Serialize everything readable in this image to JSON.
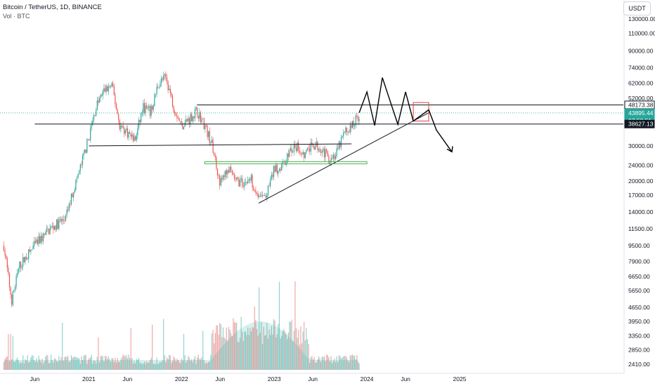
{
  "header": {
    "symbol_line": "Bitcoin / TetherUS, 1D, BINANCE",
    "volume_line": "Vol · BTC"
  },
  "currency_button": "USDT",
  "chart_data": {
    "type": "candlestick",
    "title": "",
    "y_scale": "log",
    "price_range": [
      2000,
      145000
    ],
    "price_ticks": [
      130000,
      110000,
      90000,
      74000,
      62000,
      52000,
      30000,
      24000,
      20000,
      17000,
      14000,
      11500,
      9500,
      7900,
      6650,
      5650,
      4650,
      3950,
      3350,
      2850,
      2410
    ],
    "x_tick_labels": [
      "Jun",
      "2021",
      "Jun",
      "2022",
      "Jun",
      "2023",
      "Jun",
      "2024",
      "Jun",
      "2025"
    ],
    "price_labels": [
      {
        "value": "48173.38",
        "price": 48173,
        "bg": "#ffffff",
        "fg": "#131722",
        "border": "#131722"
      },
      {
        "value": "43895.44",
        "price": 43895,
        "bg": "#26a69a",
        "fg": "#ffffff",
        "border": "#26a69a"
      },
      {
        "value": "07:58:51",
        "price": 41500,
        "bg": "#26a69a",
        "fg": "#ffffff",
        "border": "#26a69a"
      },
      {
        "value": "38627.13",
        "price": 38627,
        "bg": "#131722",
        "fg": "#ffffff",
        "border": "#131722"
      }
    ],
    "price_path": [
      [
        "2020-02",
        9500
      ],
      [
        "2020-03",
        5000
      ],
      [
        "2020-04",
        7500
      ],
      [
        "2020-06",
        9500
      ],
      [
        "2020-08",
        11500
      ],
      [
        "2020-10",
        13000
      ],
      [
        "2020-11",
        18000
      ],
      [
        "2020-12",
        24000
      ],
      [
        "2021-01",
        33000
      ],
      [
        "2021-02",
        48000
      ],
      [
        "2021-03",
        57000
      ],
      [
        "2021-04",
        60000
      ],
      [
        "2021-05",
        38000
      ],
      [
        "2021-06",
        35000
      ],
      [
        "2021-07",
        32000
      ],
      [
        "2021-08",
        47000
      ],
      [
        "2021-09",
        44000
      ],
      [
        "2021-10",
        62000
      ],
      [
        "2021-11",
        66000
      ],
      [
        "2021-12",
        47000
      ],
      [
        "2022-01",
        38000
      ],
      [
        "2022-02",
        41000
      ],
      [
        "2022-03",
        45000
      ],
      [
        "2022-04",
        38000
      ],
      [
        "2022-05",
        30000
      ],
      [
        "2022-06",
        19500
      ],
      [
        "2022-07",
        23000
      ],
      [
        "2022-08",
        20000
      ],
      [
        "2022-09",
        19500
      ],
      [
        "2022-10",
        20500
      ],
      [
        "2022-11",
        16500
      ],
      [
        "2022-12",
        16800
      ],
      [
        "2023-01",
        23000
      ],
      [
        "2023-02",
        23500
      ],
      [
        "2023-03",
        28000
      ],
      [
        "2023-04",
        29500
      ],
      [
        "2023-05",
        27000
      ],
      [
        "2023-06",
        30500
      ],
      [
        "2023-07",
        29500
      ],
      [
        "2023-08",
        26000
      ],
      [
        "2023-09",
        27000
      ],
      [
        "2023-10",
        34500
      ],
      [
        "2023-11",
        37500
      ],
      [
        "2023-12",
        43000
      ]
    ],
    "lines": [
      {
        "name": "resistance-line",
        "from": [
          "2022-03",
          48173
        ],
        "to": [
          "2025-05",
          48173
        ],
        "color": "#131722"
      },
      {
        "name": "support-line",
        "from": [
          "2020-06",
          38627
        ],
        "to": [
          "2025-05",
          38627
        ],
        "color": "#131722"
      },
      {
        "name": "range-low-line",
        "from": [
          "2021-01",
          30000
        ],
        "to": [
          "2023-11",
          30700
        ],
        "color": "#131722"
      },
      {
        "name": "rising-trendline",
        "from": [
          "2022-11",
          15500
        ],
        "to": [
          "2024-09",
          44000
        ],
        "color": "#131722"
      }
    ],
    "zones": [
      {
        "name": "green-support-zone",
        "from": [
          "2022-04",
          25000
        ],
        "to": [
          "2024-01",
          24400
        ],
        "color": "#4caf50"
      },
      {
        "name": "red-target-box",
        "from": [
          "2024-07",
          49500
        ],
        "to": [
          "2024-09",
          40000
        ],
        "color": "#e53935"
      }
    ],
    "projection": [
      [
        "2023-12",
        44000
      ],
      [
        "2024-01",
        56000
      ],
      [
        "2024-02",
        38000
      ],
      [
        "2024-03",
        66000
      ],
      [
        "2024-05",
        38500
      ],
      [
        "2024-06",
        56000
      ],
      [
        "2024-07",
        40000
      ],
      [
        "2024-09",
        45500
      ],
      [
        "2024-10",
        36000
      ],
      [
        "2024-12",
        28000
      ]
    ]
  }
}
